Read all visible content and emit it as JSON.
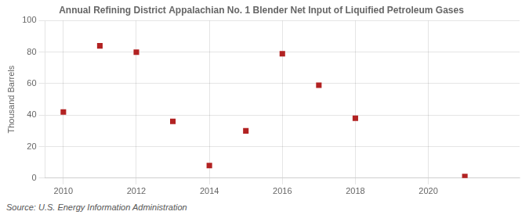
{
  "chart_data": {
    "type": "scatter",
    "title": "Annual Refining District Appalachian No. 1 Blender Net Input of Liquified Petroleum Gases",
    "ylabel": "Thousand Barrels",
    "annotations": [
      "Source: U.S. Energy Information Administration"
    ],
    "x": [
      2010,
      2011,
      2012,
      2013,
      2014,
      2015,
      2016,
      2017,
      2018,
      2021
    ],
    "values": [
      42,
      84,
      80,
      36,
      8,
      30,
      79,
      59,
      38,
      1
    ],
    "color": "#b22222",
    "marker": "square",
    "xlim": [
      2009.5,
      2022.5
    ],
    "ylim": [
      0,
      100
    ],
    "xticks": [
      2010,
      2012,
      2014,
      2016,
      2018,
      2020
    ],
    "yticks": [
      0,
      20,
      40,
      60,
      80,
      100
    ],
    "grid": true
  }
}
